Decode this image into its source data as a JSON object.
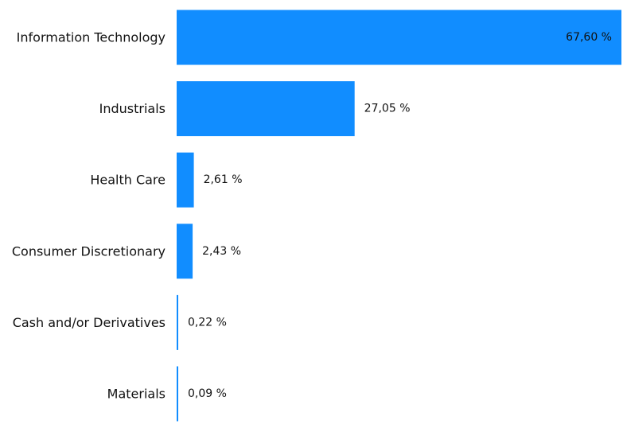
{
  "chart_data": {
    "type": "bar",
    "orientation": "horizontal",
    "title": "",
    "xlabel": "",
    "ylabel": "",
    "categories": [
      "Information Technology",
      "Industrials",
      "Health Care",
      "Consumer Discretionary",
      "Cash and/or Derivatives",
      "Materials"
    ],
    "values": [
      67.6,
      27.05,
      2.61,
      2.43,
      0.22,
      0.09
    ],
    "value_labels": [
      "67,60 %",
      "27,05 %",
      "2,61 %",
      "2,43 %",
      "0,22 %",
      "0,09 %"
    ],
    "xlim": [
      0,
      67.6
    ],
    "grid": false,
    "legend": "none",
    "bar_color": "#118dff"
  }
}
